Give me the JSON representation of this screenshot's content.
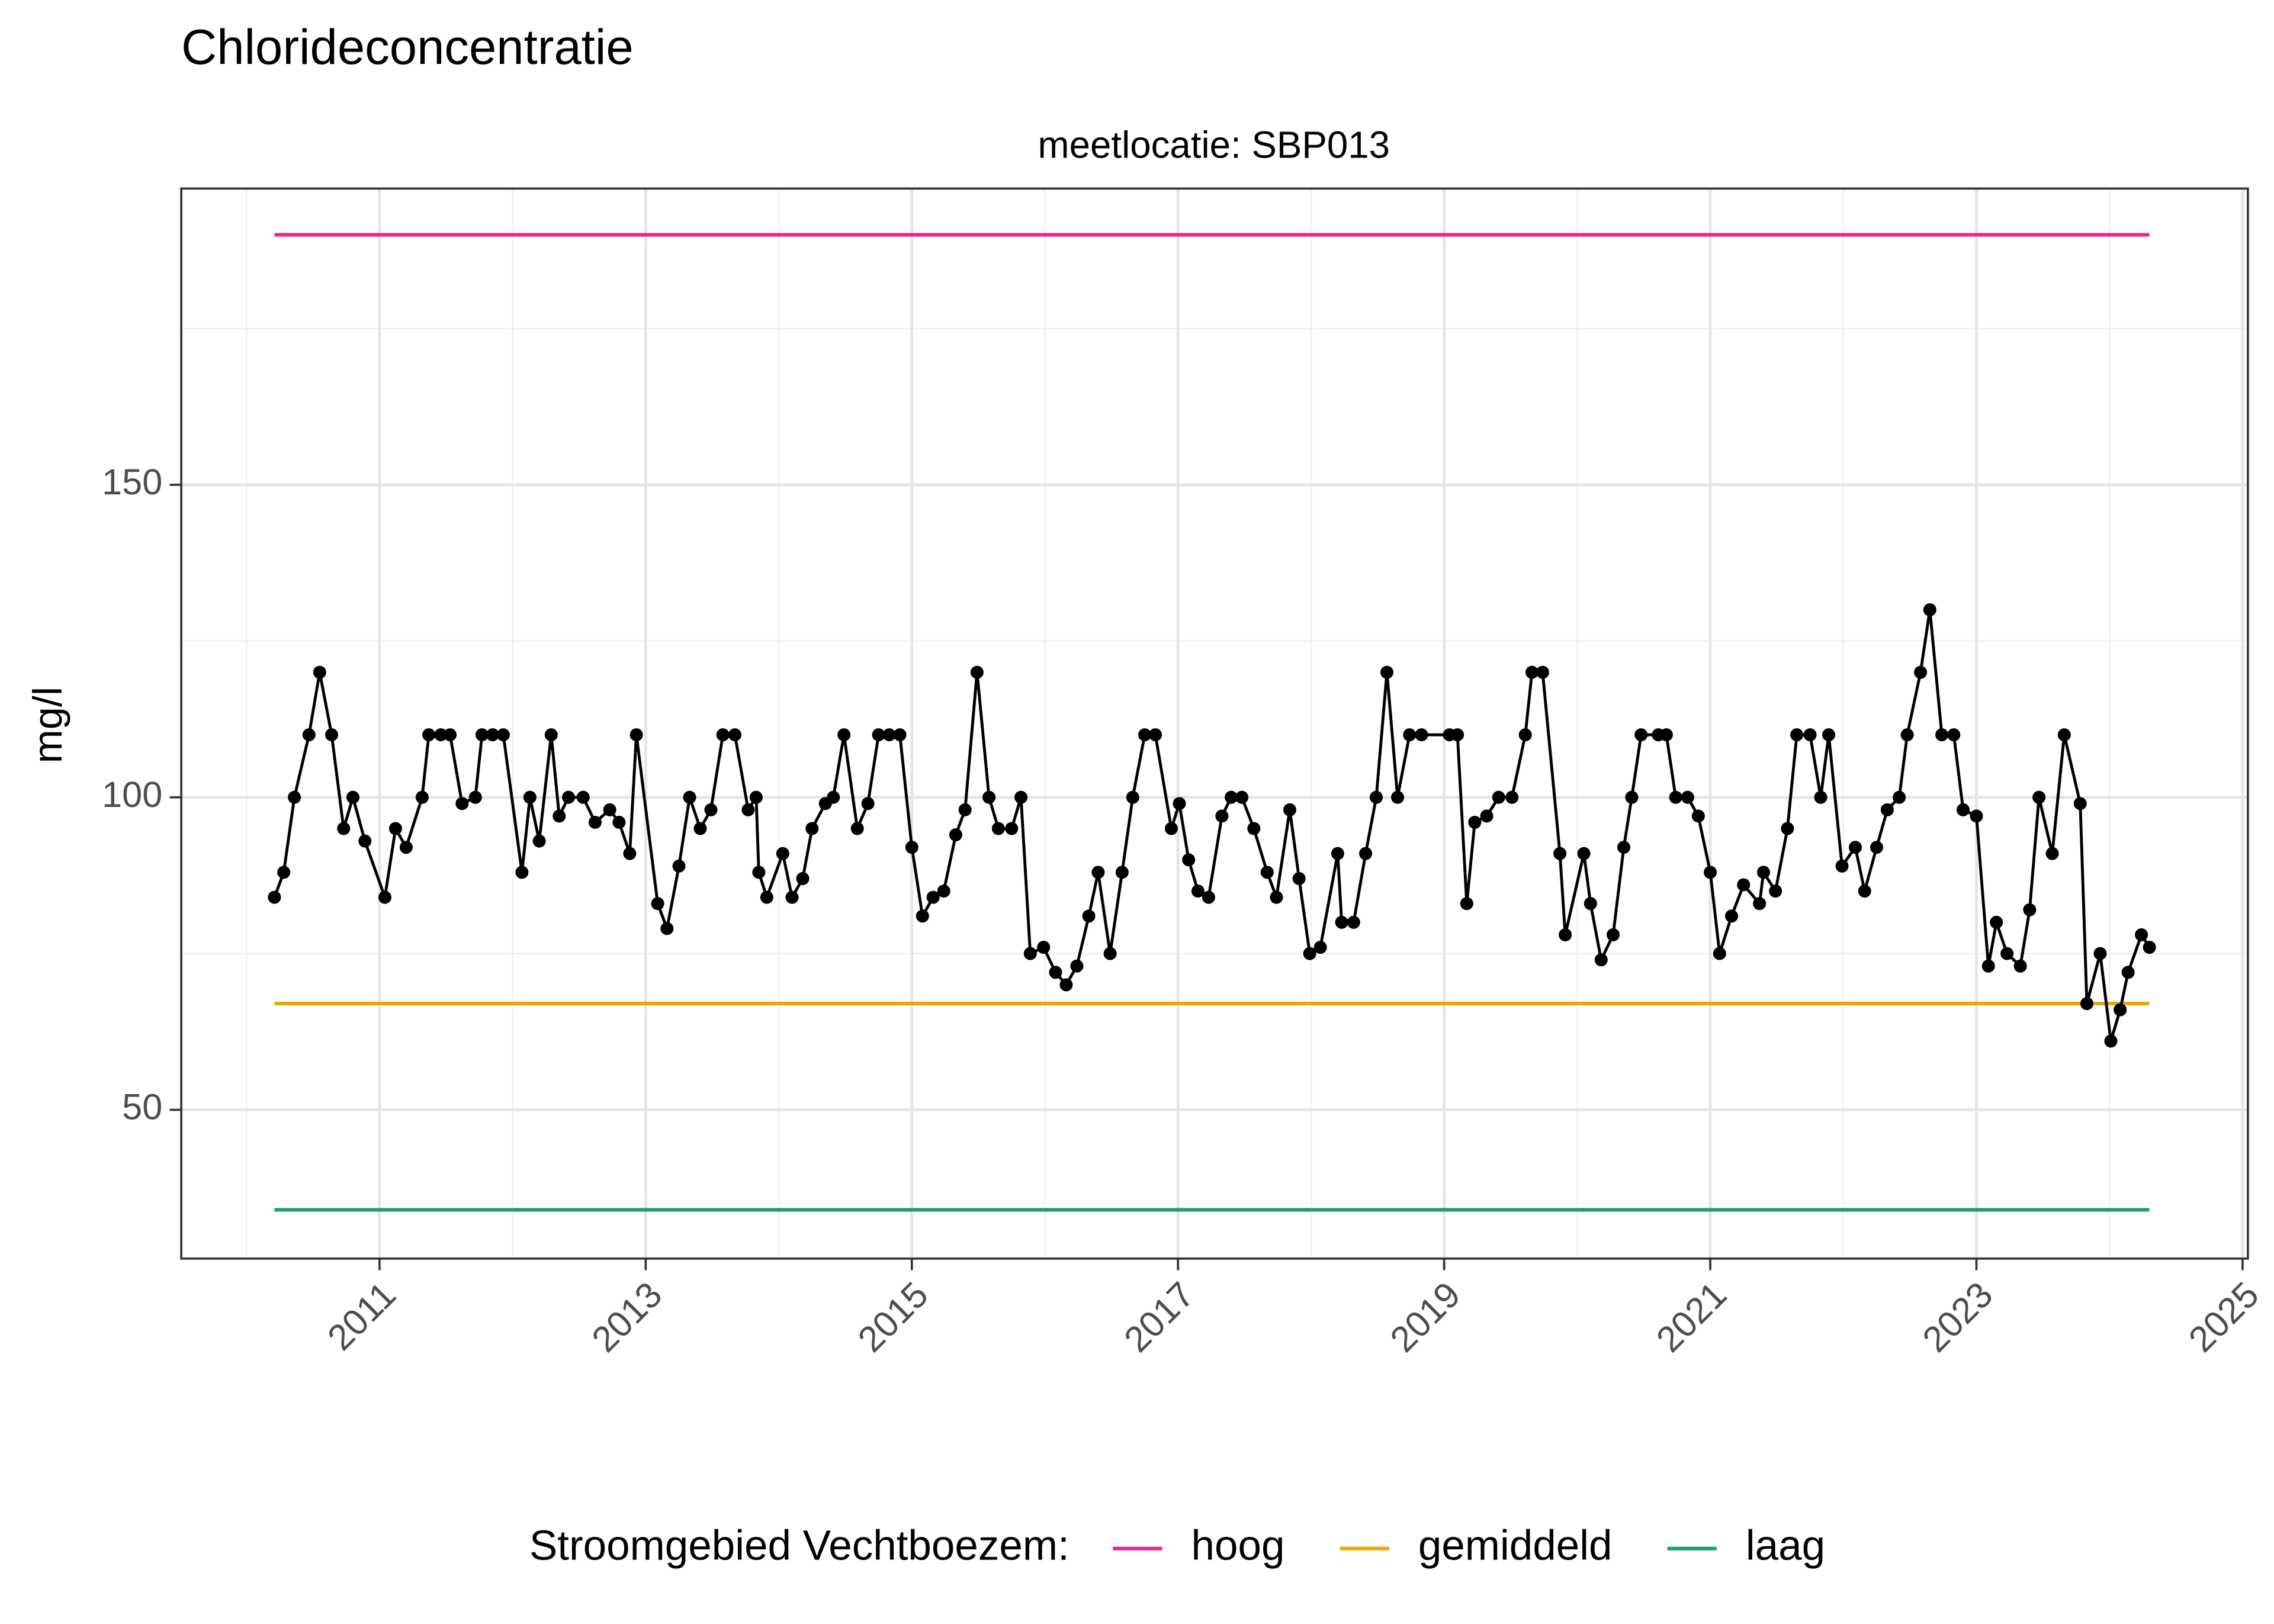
{
  "chart_data": {
    "type": "line",
    "title": "Chlorideconcentratie",
    "subtitle": "meetlocatie: SBP013",
    "y_label": "mg/l",
    "legend_title": "Stroomgebied Vechtboezem:",
    "legend_position": "bottom",
    "grid": true,
    "xlim": [
      2009.51,
      2025.04
    ],
    "xticks": [
      2011,
      2013,
      2015,
      2017,
      2019,
      2021,
      2023,
      2025
    ],
    "x_minor_ticks": [
      2010,
      2012,
      2014,
      2016,
      2018,
      2020,
      2022,
      2024
    ],
    "ylim": [
      26.2,
      197.4
    ],
    "yticks": [
      50,
      100,
      150
    ],
    "y_minor_ticks": [
      75,
      125,
      175
    ],
    "points": {
      "color": "#000000",
      "x": [
        2010.21,
        2010.28,
        2010.36,
        2010.47,
        2010.55,
        2010.64,
        2010.73,
        2010.8,
        2010.89,
        2011.04,
        2011.12,
        2011.2,
        2011.32,
        2011.37,
        2011.46,
        2011.53,
        2011.62,
        2011.72,
        2011.77,
        2011.85,
        2011.93,
        2012.07,
        2012.13,
        2012.2,
        2012.29,
        2012.35,
        2012.42,
        2012.53,
        2012.62,
        2012.73,
        2012.8,
        2012.88,
        2012.93,
        2013.09,
        2013.16,
        2013.25,
        2013.33,
        2013.41,
        2013.49,
        2013.58,
        2013.67,
        2013.77,
        2013.83,
        2013.85,
        2013.91,
        2014.03,
        2014.1,
        2014.18,
        2014.25,
        2014.35,
        2014.41,
        2014.49,
        2014.59,
        2014.67,
        2014.75,
        2014.83,
        2014.91,
        2015.0,
        2015.08,
        2015.16,
        2015.24,
        2015.33,
        2015.4,
        2015.49,
        2015.58,
        2015.65,
        2015.75,
        2015.82,
        2015.89,
        2015.99,
        2016.08,
        2016.16,
        2016.24,
        2016.33,
        2016.4,
        2016.49,
        2016.58,
        2016.66,
        2016.75,
        2016.83,
        2016.95,
        2017.01,
        2017.08,
        2017.15,
        2017.23,
        2017.33,
        2017.4,
        2017.48,
        2017.57,
        2017.67,
        2017.74,
        2017.84,
        2017.91,
        2017.99,
        2018.07,
        2018.2,
        2018.23,
        2018.32,
        2018.41,
        2018.49,
        2018.57,
        2018.65,
        2018.74,
        2018.83,
        2019.04,
        2019.1,
        2019.17,
        2019.23,
        2019.32,
        2019.41,
        2019.51,
        2019.61,
        2019.66,
        2019.74,
        2019.87,
        2019.91,
        2020.05,
        2020.1,
        2020.18,
        2020.27,
        2020.35,
        2020.41,
        2020.48,
        2020.61,
        2020.67,
        2020.74,
        2020.83,
        2020.91,
        2021.0,
        2021.07,
        2021.16,
        2021.25,
        2021.37,
        2021.4,
        2021.49,
        2021.58,
        2021.65,
        2021.75,
        2021.83,
        2021.89,
        2021.99,
        2022.09,
        2022.16,
        2022.25,
        2022.33,
        2022.42,
        2022.48,
        2022.58,
        2022.65,
        2022.74,
        2022.83,
        2022.9,
        2023.0,
        2023.09,
        2023.15,
        2023.23,
        2023.33,
        2023.4,
        2023.47,
        2023.57,
        2023.66,
        2023.78,
        2023.83,
        2023.93,
        2024.01,
        2024.08,
        2024.14,
        2024.24,
        2024.3
      ],
      "values": [
        84,
        88,
        100,
        110,
        120,
        110,
        95,
        100,
        93,
        84,
        95,
        92,
        100,
        110,
        110,
        110,
        99,
        100,
        110,
        110,
        110,
        88,
        100,
        93,
        110,
        97,
        100,
        100,
        96,
        98,
        96,
        91,
        110,
        83,
        79,
        89,
        100,
        95,
        98,
        110,
        110,
        98,
        100,
        88,
        84,
        91,
        84,
        87,
        95,
        99,
        100,
        110,
        95,
        99,
        110,
        110,
        110,
        92,
        81,
        84,
        85,
        94,
        98,
        120,
        100,
        95,
        95,
        100,
        75,
        76,
        72,
        70,
        73,
        81,
        88,
        75,
        88,
        100,
        110,
        110,
        95,
        99,
        90,
        85,
        84,
        97,
        100,
        100,
        95,
        88,
        84,
        98,
        87,
        75,
        76,
        91,
        80,
        80,
        91,
        100,
        120,
        100,
        110,
        110,
        110,
        110,
        83,
        96,
        97,
        100,
        100,
        110,
        120,
        120,
        91,
        78,
        91,
        83,
        74,
        78,
        92,
        100,
        110,
        110,
        110,
        100,
        100,
        97,
        88,
        75,
        81,
        86,
        83,
        88,
        85,
        95,
        110,
        110,
        100,
        110,
        89,
        92,
        85,
        92,
        98,
        100,
        110,
        120,
        130,
        110,
        110,
        98,
        97,
        73,
        80,
        75,
        73,
        82,
        100,
        91,
        110,
        99,
        67,
        75,
        61,
        66,
        72,
        78,
        76
      ]
    },
    "series": [
      {
        "name": "hoog",
        "color": "#e7298a",
        "x": [
          2010.21,
          2024.3
        ],
        "values": [
          190,
          190
        ]
      },
      {
        "name": "gemiddeld",
        "color": "#e6ab02",
        "x": [
          2010.21,
          2024.3
        ],
        "values": [
          67,
          67
        ]
      },
      {
        "name": "laag",
        "color": "#1b9e77",
        "x": [
          2010.21,
          2024.3
        ],
        "values": [
          34,
          34
        ]
      }
    ]
  }
}
